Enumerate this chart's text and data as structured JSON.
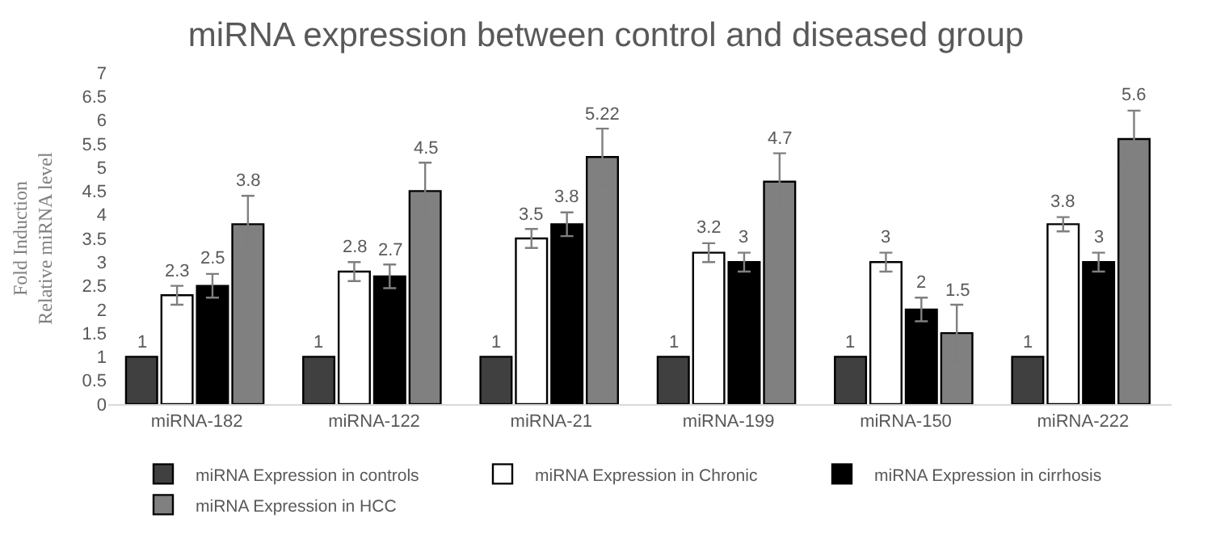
{
  "chart_data": {
    "type": "bar",
    "title": "miRNA expression between control and diseased group",
    "ylabel": "Fold Induction\nRelative miRNA level",
    "categories": [
      "miRNA-182",
      "miRNA-122",
      "miRNA-21",
      "miRNA-199",
      "miRNA-150",
      "miRNA-222"
    ],
    "series": [
      {
        "name": "miRNA Expression in controls",
        "color": "#404040",
        "values": [
          1,
          1,
          1,
          1,
          1,
          1
        ]
      },
      {
        "name": "miRNA Expression in Chronic",
        "color": "#ffffff",
        "values": [
          2.3,
          2.8,
          3.5,
          3.2,
          3,
          3.8
        ],
        "errors": [
          0.2,
          0.2,
          0.2,
          0.2,
          0.2,
          0.15
        ]
      },
      {
        "name": "miRNA Expression in cirrhosis",
        "color": "#000000",
        "values": [
          2.5,
          2.7,
          3.8,
          3,
          2,
          3
        ],
        "errors": [
          0.25,
          0.25,
          0.25,
          0.2,
          0.25,
          0.2
        ]
      },
      {
        "name": "miRNA Expression in HCC",
        "color": "#808080",
        "values": [
          3.8,
          4.5,
          5.22,
          4.7,
          1.5,
          5.6
        ],
        "errors": [
          0.6,
          0.6,
          0.6,
          0.6,
          0.6,
          0.6
        ]
      }
    ],
    "ylim": [
      0,
      7
    ],
    "yticks": [
      0,
      0.5,
      1,
      1.5,
      2,
      2.5,
      3,
      3.5,
      4,
      4.5,
      5,
      5.5,
      6,
      6.5,
      7
    ],
    "data_labels": true,
    "legend": "bottom"
  }
}
